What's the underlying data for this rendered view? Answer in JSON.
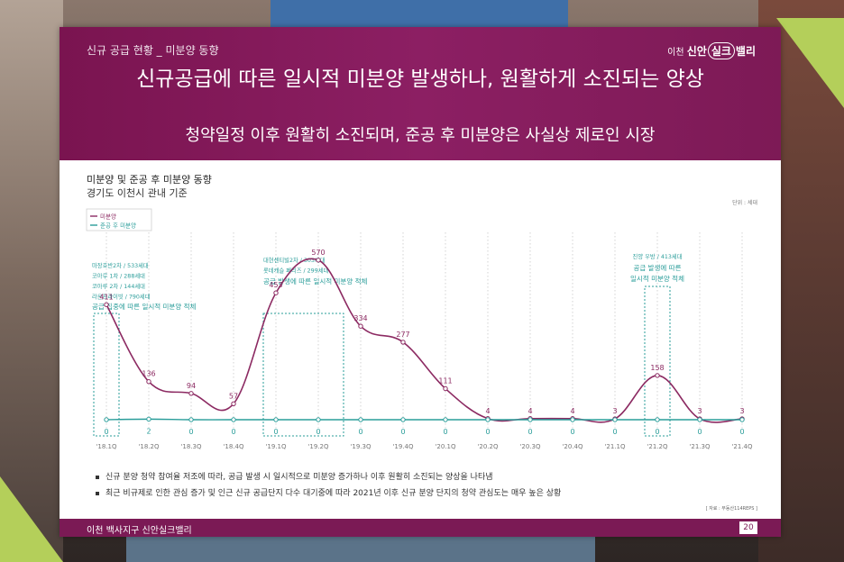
{
  "header": {
    "breadcrumb": "신규 공급 현황 _ 미분양 동향",
    "logo": {
      "prefix": "이천",
      "brand_a": "신안",
      "brand_b": "실크",
      "brand_c": "밸리"
    },
    "title": "신규공급에 따른 일시적 미분양 발생하나, 원활하게 소진되는 양상",
    "subtitle": "청약일정 이후 원활히 소진되며, 준공 후 미분양은 사실상 제로인 시장"
  },
  "chart_header": {
    "title": "미분양 및 준공 후 미분양 동향",
    "subtitle": "경기도 이천시 관내 기준",
    "unit": "단위 : 세대"
  },
  "chart_data": {
    "type": "line",
    "categories": [
      "'18.1Q",
      "'18.2Q",
      "'18.3Q",
      "'18.4Q",
      "'19.1Q",
      "'19.2Q",
      "'19.3Q",
      "'19.4Q",
      "'20.1Q",
      "'20.2Q",
      "'20.3Q",
      "'20.4Q",
      "'21.1Q",
      "'21.2Q",
      "'21.3Q",
      "'21.4Q"
    ],
    "series": [
      {
        "name": "미분양",
        "color": "#8c2a62",
        "values": [
          411,
          136,
          94,
          57,
          453,
          570,
          334,
          277,
          111,
          4,
          4,
          4,
          3,
          158,
          3,
          3
        ]
      },
      {
        "name": "준공 후 미분양",
        "color": "#2a9d9a",
        "values": [
          0,
          2,
          0,
          0,
          0,
          0,
          0,
          0,
          0,
          0,
          0,
          0,
          0,
          0,
          0,
          0
        ]
      }
    ],
    "ylim": [
      0,
      650
    ],
    "legend_position": "top-left",
    "grid_vertical": true,
    "annotations": [
      {
        "category_index": 0,
        "lines": [
          "마장호반2차 / 533세대",
          "코아루 1차 / 288세대",
          "코아루 2차 / 144세대",
          "라온프라이빗 / 790세대"
        ],
        "caption": "공급 집중에 따른 일시적 미분양 적체"
      },
      {
        "category_index": 4,
        "lines": [
          "대현센티빌2차 / 303세대",
          "롯데캐슬 페리즈 / 299세대"
        ],
        "caption": "공급 발생에 따른 일시적 미분양 적체"
      },
      {
        "category_index": 13,
        "lines": [
          "진양 우방 / 413세대"
        ],
        "caption": "공급 발생에 따른 일시적 미분양 적체"
      }
    ]
  },
  "notes": [
    "신규 분양 청약 참여율 저조에 따라, 공급 발생 시 일시적으로 미분양 증가하나 이후 원활히 소진되는 양상을 나타냄",
    "최근 비규제로 인한 관심 증가 및 인근 신규 공급단지 다수 대기중에 따라 2021년 이후 신규 분양 단지의 청약 관심도는 매우 높은 상황"
  ],
  "source": "[ 자료 : 부동산114REPS ]",
  "footer": {
    "text": "이천 백사지구 신안실크밸리",
    "page": "20"
  }
}
